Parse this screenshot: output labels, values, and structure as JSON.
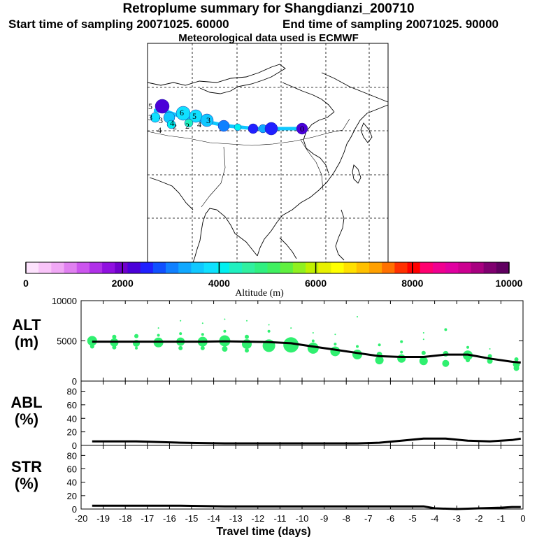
{
  "title": "Retroplume summary for Shangdianzi_200710",
  "start_label": "Start time of sampling 20071025. 60000",
  "end_label": "End time of sampling 20071025. 90000",
  "met_label": "Meteorological data used is ECMWF",
  "colorbar": {
    "colors": [
      "#fde2fd",
      "#f9c4f9",
      "#f0a8f5",
      "#e080f0",
      "#cc55ee",
      "#b030e8",
      "#9010e0",
      "#7000cc",
      "#4b00d8",
      "#2020ff",
      "#1050ff",
      "#1080ff",
      "#10a8ff",
      "#10c8ff",
      "#10e0ff",
      "#00f0f0",
      "#20f0c0",
      "#30f0a0",
      "#30f080",
      "#40f060",
      "#60f040",
      "#90f020",
      "#c0f000",
      "#e8f000",
      "#ffff00",
      "#ffe000",
      "#ffc000",
      "#ffa000",
      "#ff7000",
      "#ff3000",
      "#ff0000",
      "#ff0070",
      "#f00090",
      "#e000a0",
      "#cc0090",
      "#a80080",
      "#800070",
      "#600060"
    ],
    "ticks": [
      "0",
      "2000",
      "4000",
      "6000",
      "8000",
      "10000"
    ],
    "label": "Altitude (m)"
  },
  "map": {
    "plume_labels": [
      "5",
      "3",
      "4",
      "6",
      "5",
      "3",
      "2",
      "4",
      "3",
      "2",
      "4",
      "0"
    ]
  },
  "chart_data": [
    {
      "type": "line",
      "panel": "ALT",
      "ylabel_line1": "ALT",
      "ylabel_line2": "(m)",
      "yticks": [
        "0",
        "5000",
        "10000"
      ],
      "ylim": [
        0,
        10000
      ],
      "xlim": [
        -20,
        0
      ],
      "x": [
        -19.5,
        -18.5,
        -17.5,
        -16.5,
        -15.5,
        -14.5,
        -13.5,
        -12.5,
        -11.5,
        -10.5,
        -9.5,
        -8.5,
        -7.5,
        -6.5,
        -5.5,
        -4.5,
        -3.5,
        -2.5,
        -1.5,
        -0.5,
        -0.1
      ],
      "values": [
        4900,
        4900,
        4900,
        4900,
        4900,
        4900,
        4950,
        4900,
        4850,
        4700,
        4300,
        3900,
        3500,
        3100,
        3000,
        3000,
        3300,
        3300,
        2800,
        2400,
        2300
      ],
      "scatter_points": [
        {
          "x": -19.5,
          "y": 5000,
          "s": 7
        },
        {
          "x": -19.5,
          "y": 4300,
          "s": 3
        },
        {
          "x": -18.5,
          "y": 4800,
          "s": 6
        },
        {
          "x": -18.5,
          "y": 5500,
          "s": 3
        },
        {
          "x": -18.5,
          "y": 4200,
          "s": 3
        },
        {
          "x": -17.5,
          "y": 4700,
          "s": 5
        },
        {
          "x": -17.5,
          "y": 5600,
          "s": 3
        },
        {
          "x": -17.5,
          "y": 4100,
          "s": 2
        },
        {
          "x": -16.5,
          "y": 4800,
          "s": 7
        },
        {
          "x": -16.5,
          "y": 5700,
          "s": 2
        },
        {
          "x": -16.5,
          "y": 6600,
          "s": 1
        },
        {
          "x": -15.5,
          "y": 4900,
          "s": 6
        },
        {
          "x": -15.5,
          "y": 5900,
          "s": 2
        },
        {
          "x": -15.5,
          "y": 4100,
          "s": 3
        },
        {
          "x": -15.5,
          "y": 7500,
          "s": 1
        },
        {
          "x": -14.5,
          "y": 4900,
          "s": 7
        },
        {
          "x": -14.5,
          "y": 4100,
          "s": 3
        },
        {
          "x": -14.5,
          "y": 5800,
          "s": 2
        },
        {
          "x": -14.5,
          "y": 7200,
          "s": 1
        },
        {
          "x": -13.5,
          "y": 5000,
          "s": 8
        },
        {
          "x": -13.5,
          "y": 4000,
          "s": 4
        },
        {
          "x": -13.5,
          "y": 6200,
          "s": 2
        },
        {
          "x": -13.5,
          "y": 7700,
          "s": 1
        },
        {
          "x": -12.5,
          "y": 4600,
          "s": 7
        },
        {
          "x": -12.5,
          "y": 5500,
          "s": 3
        },
        {
          "x": -12.5,
          "y": 3800,
          "s": 3
        },
        {
          "x": -12.5,
          "y": 7500,
          "s": 1
        },
        {
          "x": -11.5,
          "y": 4400,
          "s": 9
        },
        {
          "x": -11.5,
          "y": 6200,
          "s": 2
        },
        {
          "x": -11.5,
          "y": 7000,
          "s": 1
        },
        {
          "x": -10.5,
          "y": 4500,
          "s": 11
        },
        {
          "x": -10.5,
          "y": 6600,
          "s": 1
        },
        {
          "x": -9.5,
          "y": 4100,
          "s": 8
        },
        {
          "x": -9.5,
          "y": 5000,
          "s": 2
        },
        {
          "x": -9.5,
          "y": 6000,
          "s": 1
        },
        {
          "x": -8.5,
          "y": 3700,
          "s": 7
        },
        {
          "x": -8.5,
          "y": 4600,
          "s": 2
        },
        {
          "x": -8.5,
          "y": 5800,
          "s": 1
        },
        {
          "x": -7.5,
          "y": 3300,
          "s": 7
        },
        {
          "x": -7.5,
          "y": 4300,
          "s": 2
        },
        {
          "x": -7.5,
          "y": 8000,
          "s": 1
        },
        {
          "x": -6.5,
          "y": 2600,
          "s": 6
        },
        {
          "x": -6.5,
          "y": 3300,
          "s": 4
        },
        {
          "x": -6.5,
          "y": 4500,
          "s": 2
        },
        {
          "x": -5.5,
          "y": 2800,
          "s": 6
        },
        {
          "x": -5.5,
          "y": 3600,
          "s": 2
        },
        {
          "x": -5.5,
          "y": 4900,
          "s": 2
        },
        {
          "x": -4.5,
          "y": 2500,
          "s": 6
        },
        {
          "x": -4.5,
          "y": 3500,
          "s": 3
        },
        {
          "x": -4.5,
          "y": 5200,
          "s": 1
        },
        {
          "x": -4.5,
          "y": 6000,
          "s": 1
        },
        {
          "x": -3.5,
          "y": 2200,
          "s": 5
        },
        {
          "x": -3.5,
          "y": 3400,
          "s": 4
        },
        {
          "x": -3.5,
          "y": 6400,
          "s": 2
        },
        {
          "x": -2.5,
          "y": 3200,
          "s": 7
        },
        {
          "x": -2.5,
          "y": 2600,
          "s": 3
        },
        {
          "x": -2.5,
          "y": 4200,
          "s": 2
        },
        {
          "x": -1.5,
          "y": 2500,
          "s": 4
        },
        {
          "x": -1.5,
          "y": 3100,
          "s": 3
        },
        {
          "x": -1.5,
          "y": 4000,
          "s": 1
        },
        {
          "x": -0.3,
          "y": 2100,
          "s": 5
        },
        {
          "x": -0.3,
          "y": 1600,
          "s": 4
        },
        {
          "x": -0.3,
          "y": 2700,
          "s": 3
        }
      ]
    },
    {
      "type": "line",
      "panel": "ABL",
      "ylabel_line1": "ABL",
      "ylabel_line2": "(%)",
      "yticks": [
        "0",
        "20",
        "40",
        "60",
        "80"
      ],
      "ylim": [
        0,
        95
      ],
      "xlim": [
        -20,
        0
      ],
      "x": [
        -19.5,
        -17.5,
        -15.5,
        -13.5,
        -11.5,
        -9.5,
        -7.5,
        -6.5,
        -5.5,
        -4.5,
        -3.5,
        -2.5,
        -1.5,
        -0.5,
        -0.1
      ],
      "values": [
        6,
        6,
        4,
        3,
        3,
        3,
        3,
        4,
        7,
        10,
        10,
        7,
        6,
        8,
        10
      ]
    },
    {
      "type": "line",
      "panel": "STR",
      "ylabel_line1": "STR",
      "ylabel_line2": "(%)",
      "yticks": [
        "0",
        "20",
        "40",
        "60",
        "80"
      ],
      "ylim": [
        0,
        95
      ],
      "xlim": [
        -20,
        0
      ],
      "xticks": [
        "-20",
        "-19",
        "-18",
        "-17",
        "-16",
        "-15",
        "-14",
        "-13",
        "-12",
        "-11",
        "-10",
        "-9",
        "-8",
        "-7",
        "-6",
        "-5",
        "-4",
        "-3",
        "-2",
        "-1",
        "0"
      ],
      "xlabel": "Travel time (days)",
      "x": [
        -19.5,
        -17.5,
        -15.5,
        -13.5,
        -11.5,
        -9.5,
        -7.5,
        -5.5,
        -4.5,
        -4,
        -3,
        -2,
        -1,
        -0.5,
        -0.1
      ],
      "values": [
        5,
        5,
        5,
        4,
        4,
        4,
        4,
        4,
        4,
        1,
        0,
        1,
        2,
        3,
        3
      ]
    }
  ]
}
